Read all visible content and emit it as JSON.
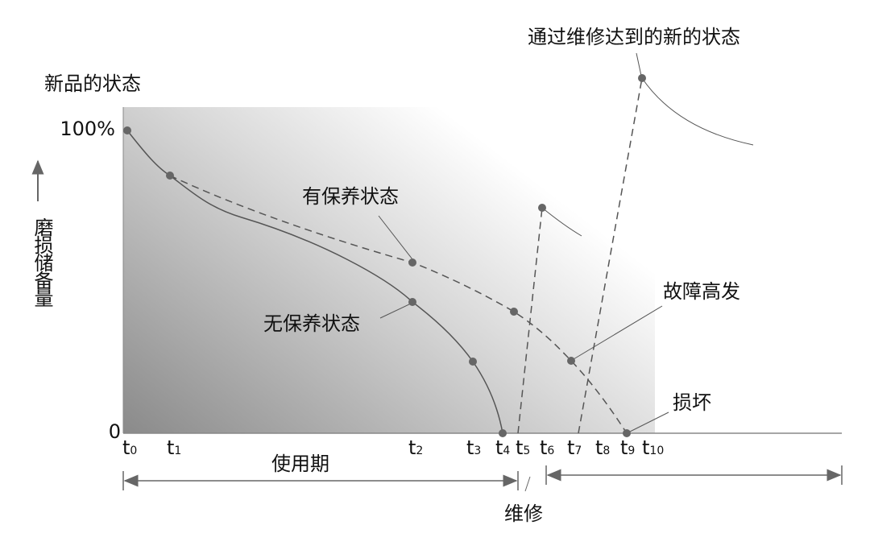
{
  "labels": {
    "new_state": "新品的状态",
    "y_top": "100%",
    "y_zero": "0",
    "y_axis": "磨损储备量",
    "maintained": "有保养状态",
    "unmaintained": "无保养状态",
    "high_failure": "故障高发",
    "broken": "损坏",
    "repaired": "通过维修达到的新的状态",
    "usage_period": "使用期",
    "repair": "维修"
  },
  "x_ticks": [
    {
      "letter": "t",
      "sub": "0"
    },
    {
      "letter": "t",
      "sub": "1"
    },
    {
      "letter": "t",
      "sub": "2"
    },
    {
      "letter": "t",
      "sub": "3"
    },
    {
      "letter": "t",
      "sub": "4"
    },
    {
      "letter": "t",
      "sub": "5"
    },
    {
      "letter": "t",
      "sub": "6"
    },
    {
      "letter": "t",
      "sub": "7"
    },
    {
      "letter": "t",
      "sub": "8"
    },
    {
      "letter": "t",
      "sub": "9"
    },
    {
      "letter": "t",
      "sub": "10"
    }
  ]
}
